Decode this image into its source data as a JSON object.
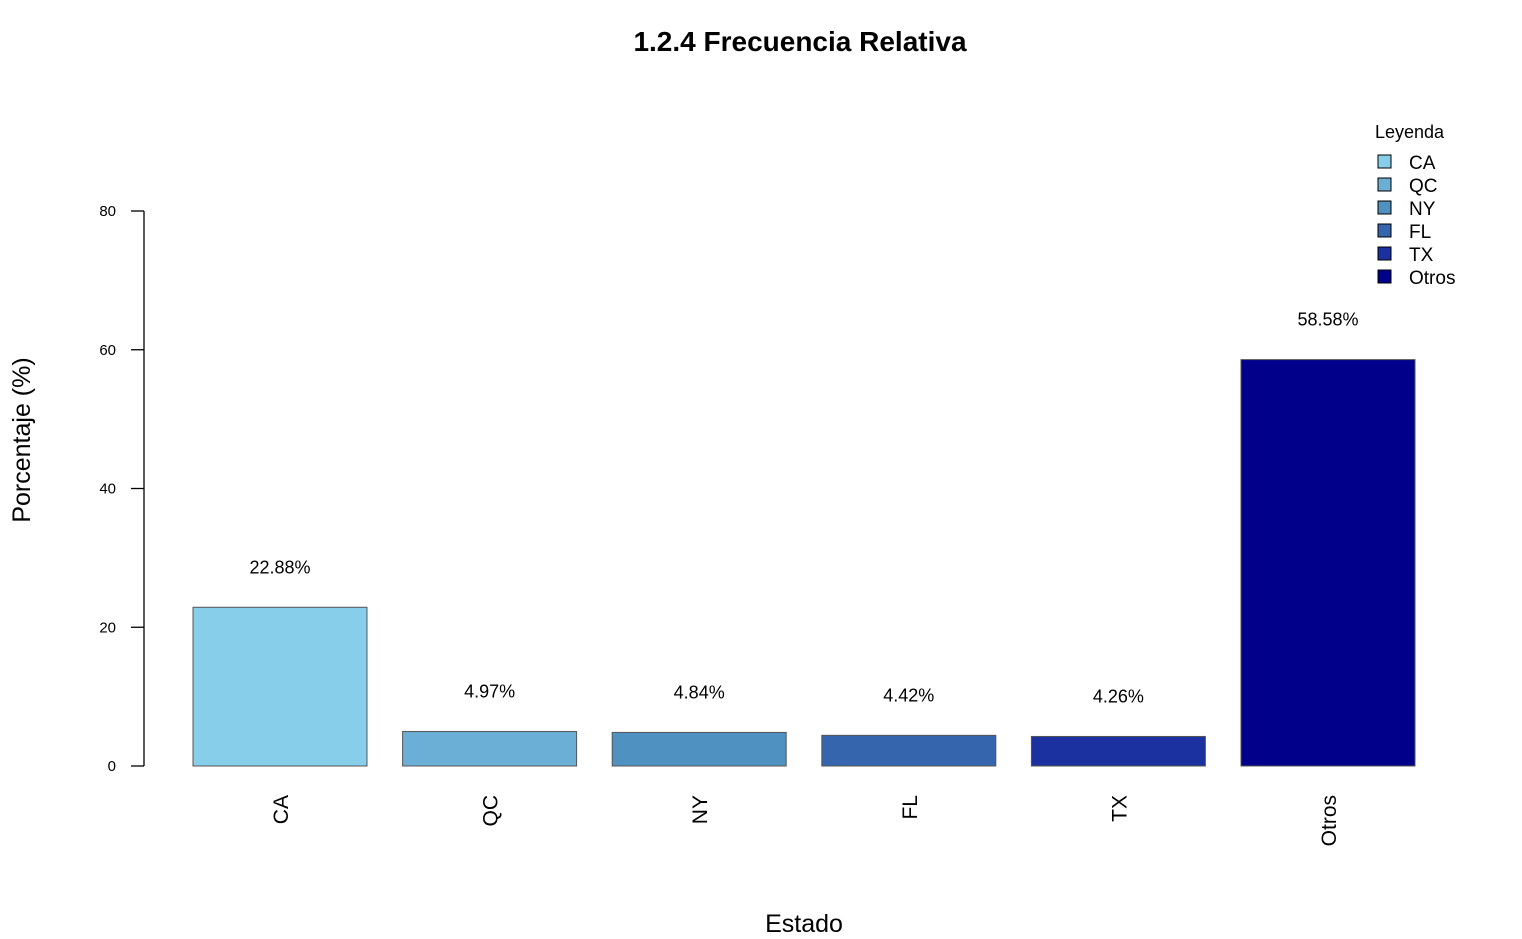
{
  "chart_data": {
    "type": "bar",
    "title": "1.2.4 Frecuencia Relativa",
    "xlabel": "Estado",
    "ylabel": "Porcentaje (%)",
    "categories": [
      "CA",
      "QC",
      "NY",
      "FL",
      "TX",
      "Otros"
    ],
    "values": [
      22.88,
      4.97,
      4.84,
      4.42,
      4.26,
      58.58
    ],
    "data_labels": [
      "22.88%",
      "4.97%",
      "4.84%",
      "4.42%",
      "4.26%",
      "58.58%"
    ],
    "colors": [
      "#87ceeb",
      "#6baed6",
      "#4f91c0",
      "#3566ad",
      "#1c31a0",
      "#00008b"
    ],
    "ylim": [
      0,
      80
    ],
    "yticks": [
      0,
      20,
      40,
      60,
      80
    ],
    "grid": false,
    "legend": {
      "title": "Leyenda",
      "placement": "top-right",
      "entries": [
        "CA",
        "QC",
        "NY",
        "FL",
        "TX",
        "Otros"
      ]
    }
  }
}
